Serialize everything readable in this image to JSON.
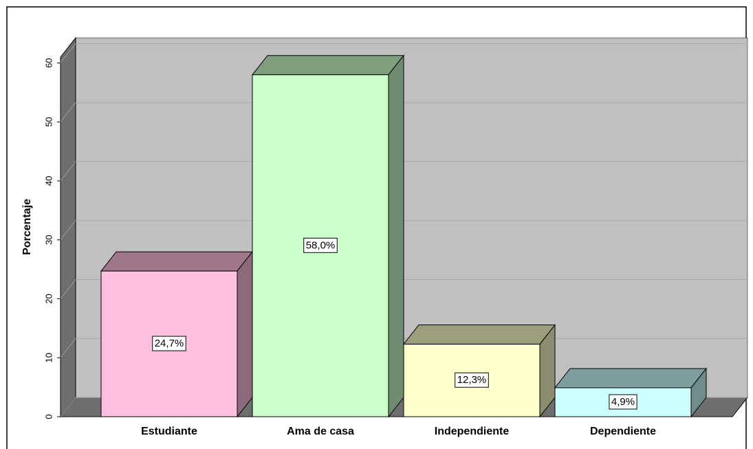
{
  "chart_data": {
    "type": "bar3d",
    "ylabel": "Porcentaje",
    "categories": [
      "Estudiante",
      "Ama de casa",
      "Independiente",
      "Dependiente"
    ],
    "values": [
      24.7,
      58.0,
      12.3,
      4.9
    ],
    "value_labels": [
      "24,7%",
      "58,0%",
      "12,3%",
      "4,9%"
    ],
    "colors": [
      "#ffc0e0",
      "#ccffcc",
      "#ffffcc",
      "#ccffff"
    ],
    "ylim": [
      0,
      61
    ],
    "yticks": [
      0,
      10,
      20,
      30,
      40,
      50,
      60
    ],
    "grid": true
  }
}
